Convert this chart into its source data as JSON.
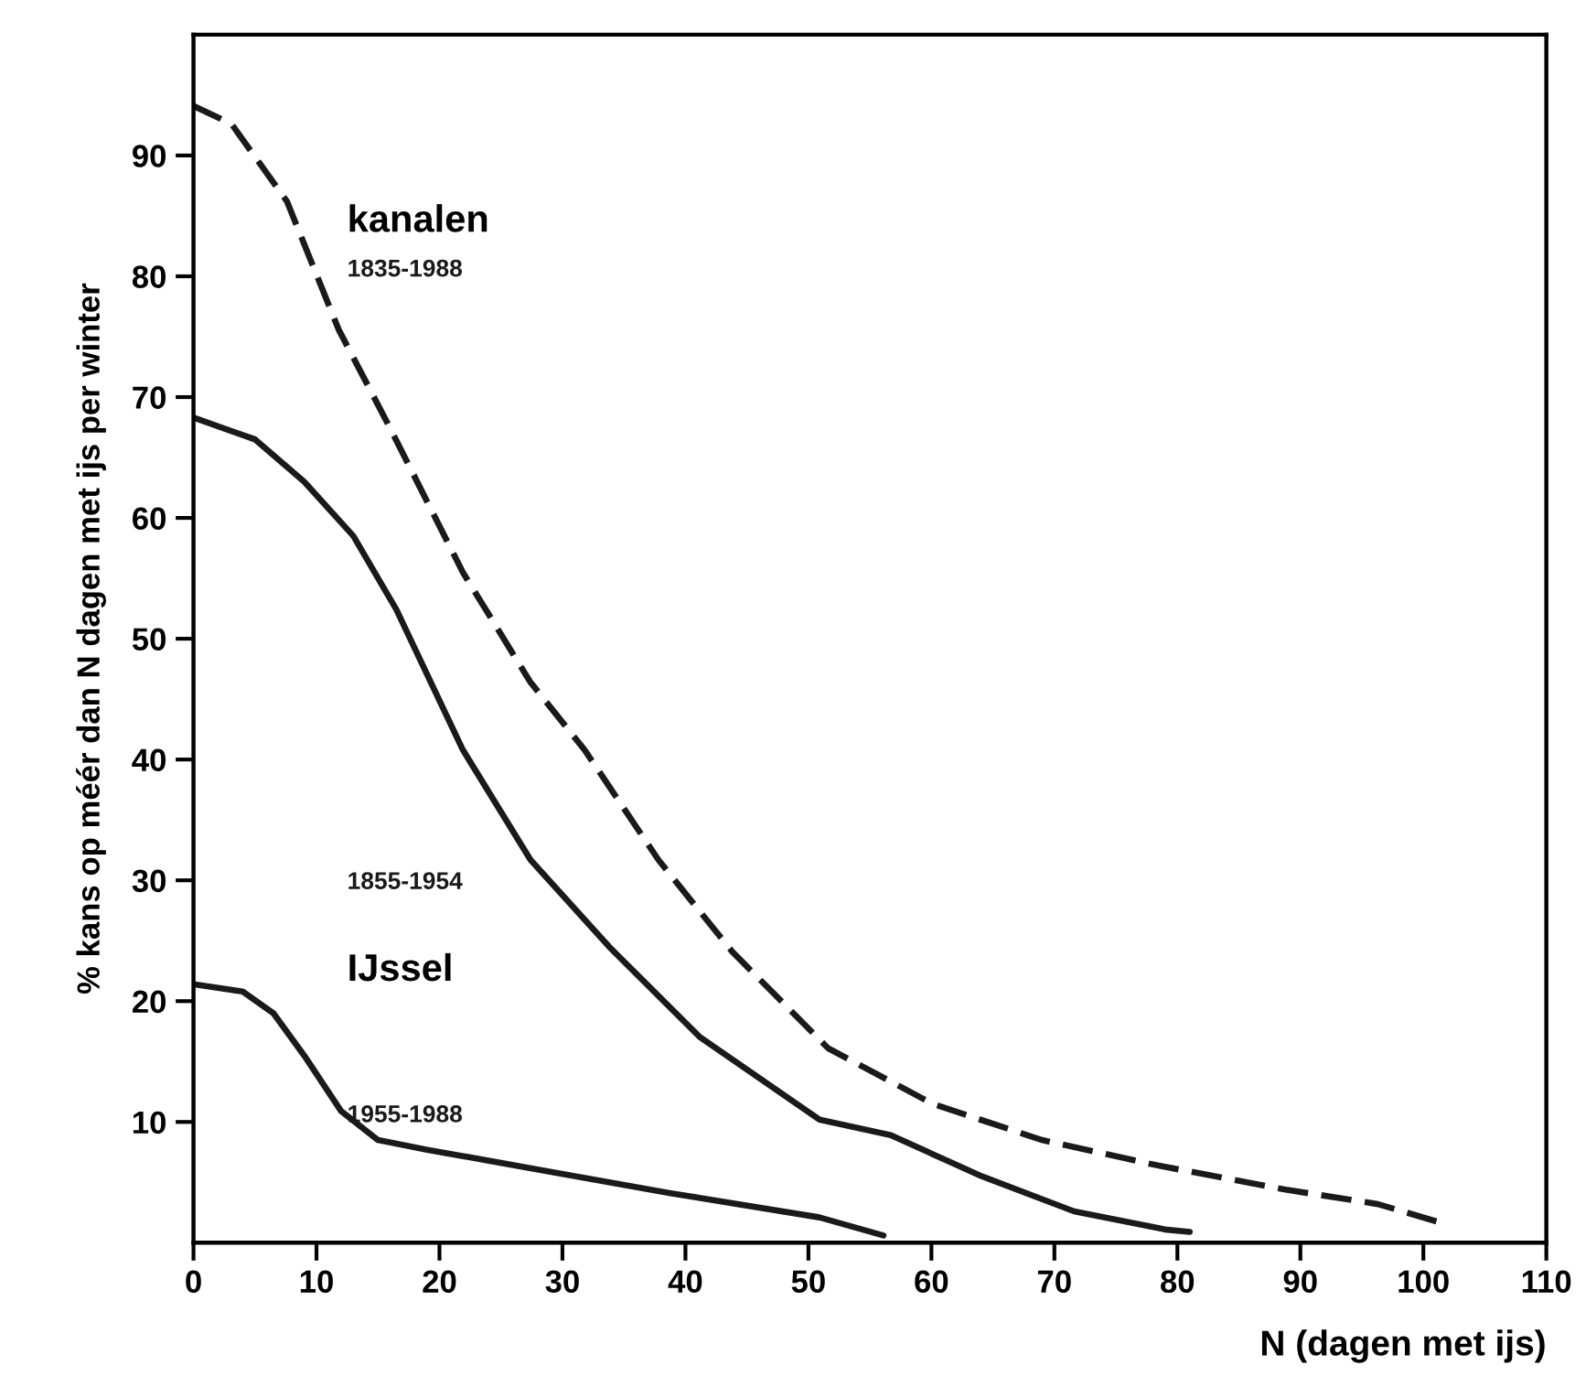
{
  "chart_data": {
    "type": "line",
    "xlabel": "N (dagen met ijs)",
    "ylabel": "% kans op méér dan N dagen met ijs per winter",
    "annotations": [
      "kanalen",
      "IJssel"
    ],
    "xlim": [
      0,
      110
    ],
    "ylim": [
      0,
      100
    ],
    "xticks": [
      0,
      10,
      20,
      30,
      40,
      50,
      60,
      70,
      80,
      90,
      100,
      110
    ],
    "yticks": [
      10,
      20,
      30,
      40,
      50,
      60,
      70,
      80,
      90
    ],
    "grid": false,
    "legend": false,
    "marker": "none",
    "series": [
      {
        "name": "1835-1988",
        "color": "#1a1a1a",
        "line_style": "dashed",
        "x": [
          0,
          3.1,
          7.6,
          11.8,
          15.9,
          21.9,
          27.4,
          31.8,
          37.8,
          43.8,
          51.6,
          60.1,
          69,
          78.4,
          88.8,
          96.3,
          101.3
        ],
        "values": [
          94.1,
          92.6,
          86.2,
          75.6,
          67.6,
          55.5,
          46.4,
          40.8,
          31.7,
          24.1,
          16.1,
          11.5,
          8.5,
          6.4,
          4.4,
          3.2,
          1.7
        ]
      },
      {
        "name": "1855-1954",
        "color": "#1a1a1a",
        "line_style": "solid",
        "x": [
          0,
          5,
          9,
          13,
          16.5,
          21.9,
          27.4,
          33.8,
          41.2,
          50.9,
          56.7,
          64.1,
          71.6,
          79,
          81
        ],
        "values": [
          68.3,
          66.5,
          63,
          58.5,
          52.4,
          40.8,
          31.7,
          24.5,
          17,
          10.2,
          8.9,
          5.5,
          2.6,
          1.1,
          0.9
        ]
      },
      {
        "name": "1955-1988",
        "color": "#1a1a1a",
        "line_style": "solid",
        "x": [
          0,
          4,
          6.5,
          9,
          12,
          15,
          19,
          28.9,
          38.8,
          50.9,
          56.1
        ],
        "values": [
          21.4,
          20.8,
          19,
          15.5,
          10.9,
          8.5,
          7.7,
          5.9,
          4.1,
          2.1,
          0.6
        ]
      }
    ]
  }
}
